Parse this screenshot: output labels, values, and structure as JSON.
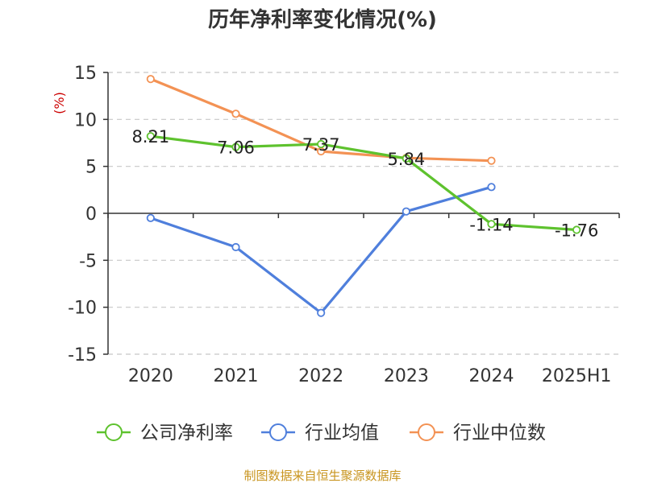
{
  "chart_data": {
    "type": "line",
    "title": "历年净利率变化情况(%)",
    "ylabel": "(%)",
    "xlabel": "",
    "categories": [
      "2020",
      "2021",
      "2022",
      "2023",
      "2024",
      "2025H1"
    ],
    "ylim": [
      -15,
      15
    ],
    "yticks": [
      15,
      10,
      5,
      0,
      -5,
      -10,
      -15
    ],
    "grid": true,
    "legend_position": "bottom",
    "series": [
      {
        "name": "公司净利率",
        "color": "#5ec22e",
        "values": [
          8.21,
          7.06,
          7.37,
          5.84,
          -1.14,
          -1.76
        ],
        "labels": [
          "8.21",
          "7.06",
          "7.37",
          "5.84",
          "-1.14",
          "-1.76"
        ]
      },
      {
        "name": "行业均值",
        "color": "#4f7fdc",
        "values": [
          -0.5,
          -3.6,
          -10.6,
          0.2,
          2.8,
          null
        ]
      },
      {
        "name": "行业中位数",
        "color": "#f39254",
        "values": [
          14.3,
          10.6,
          6.6,
          5.9,
          5.6,
          null
        ]
      }
    ]
  },
  "footer": {
    "source": "制图数据来自恒生聚源数据库"
  }
}
